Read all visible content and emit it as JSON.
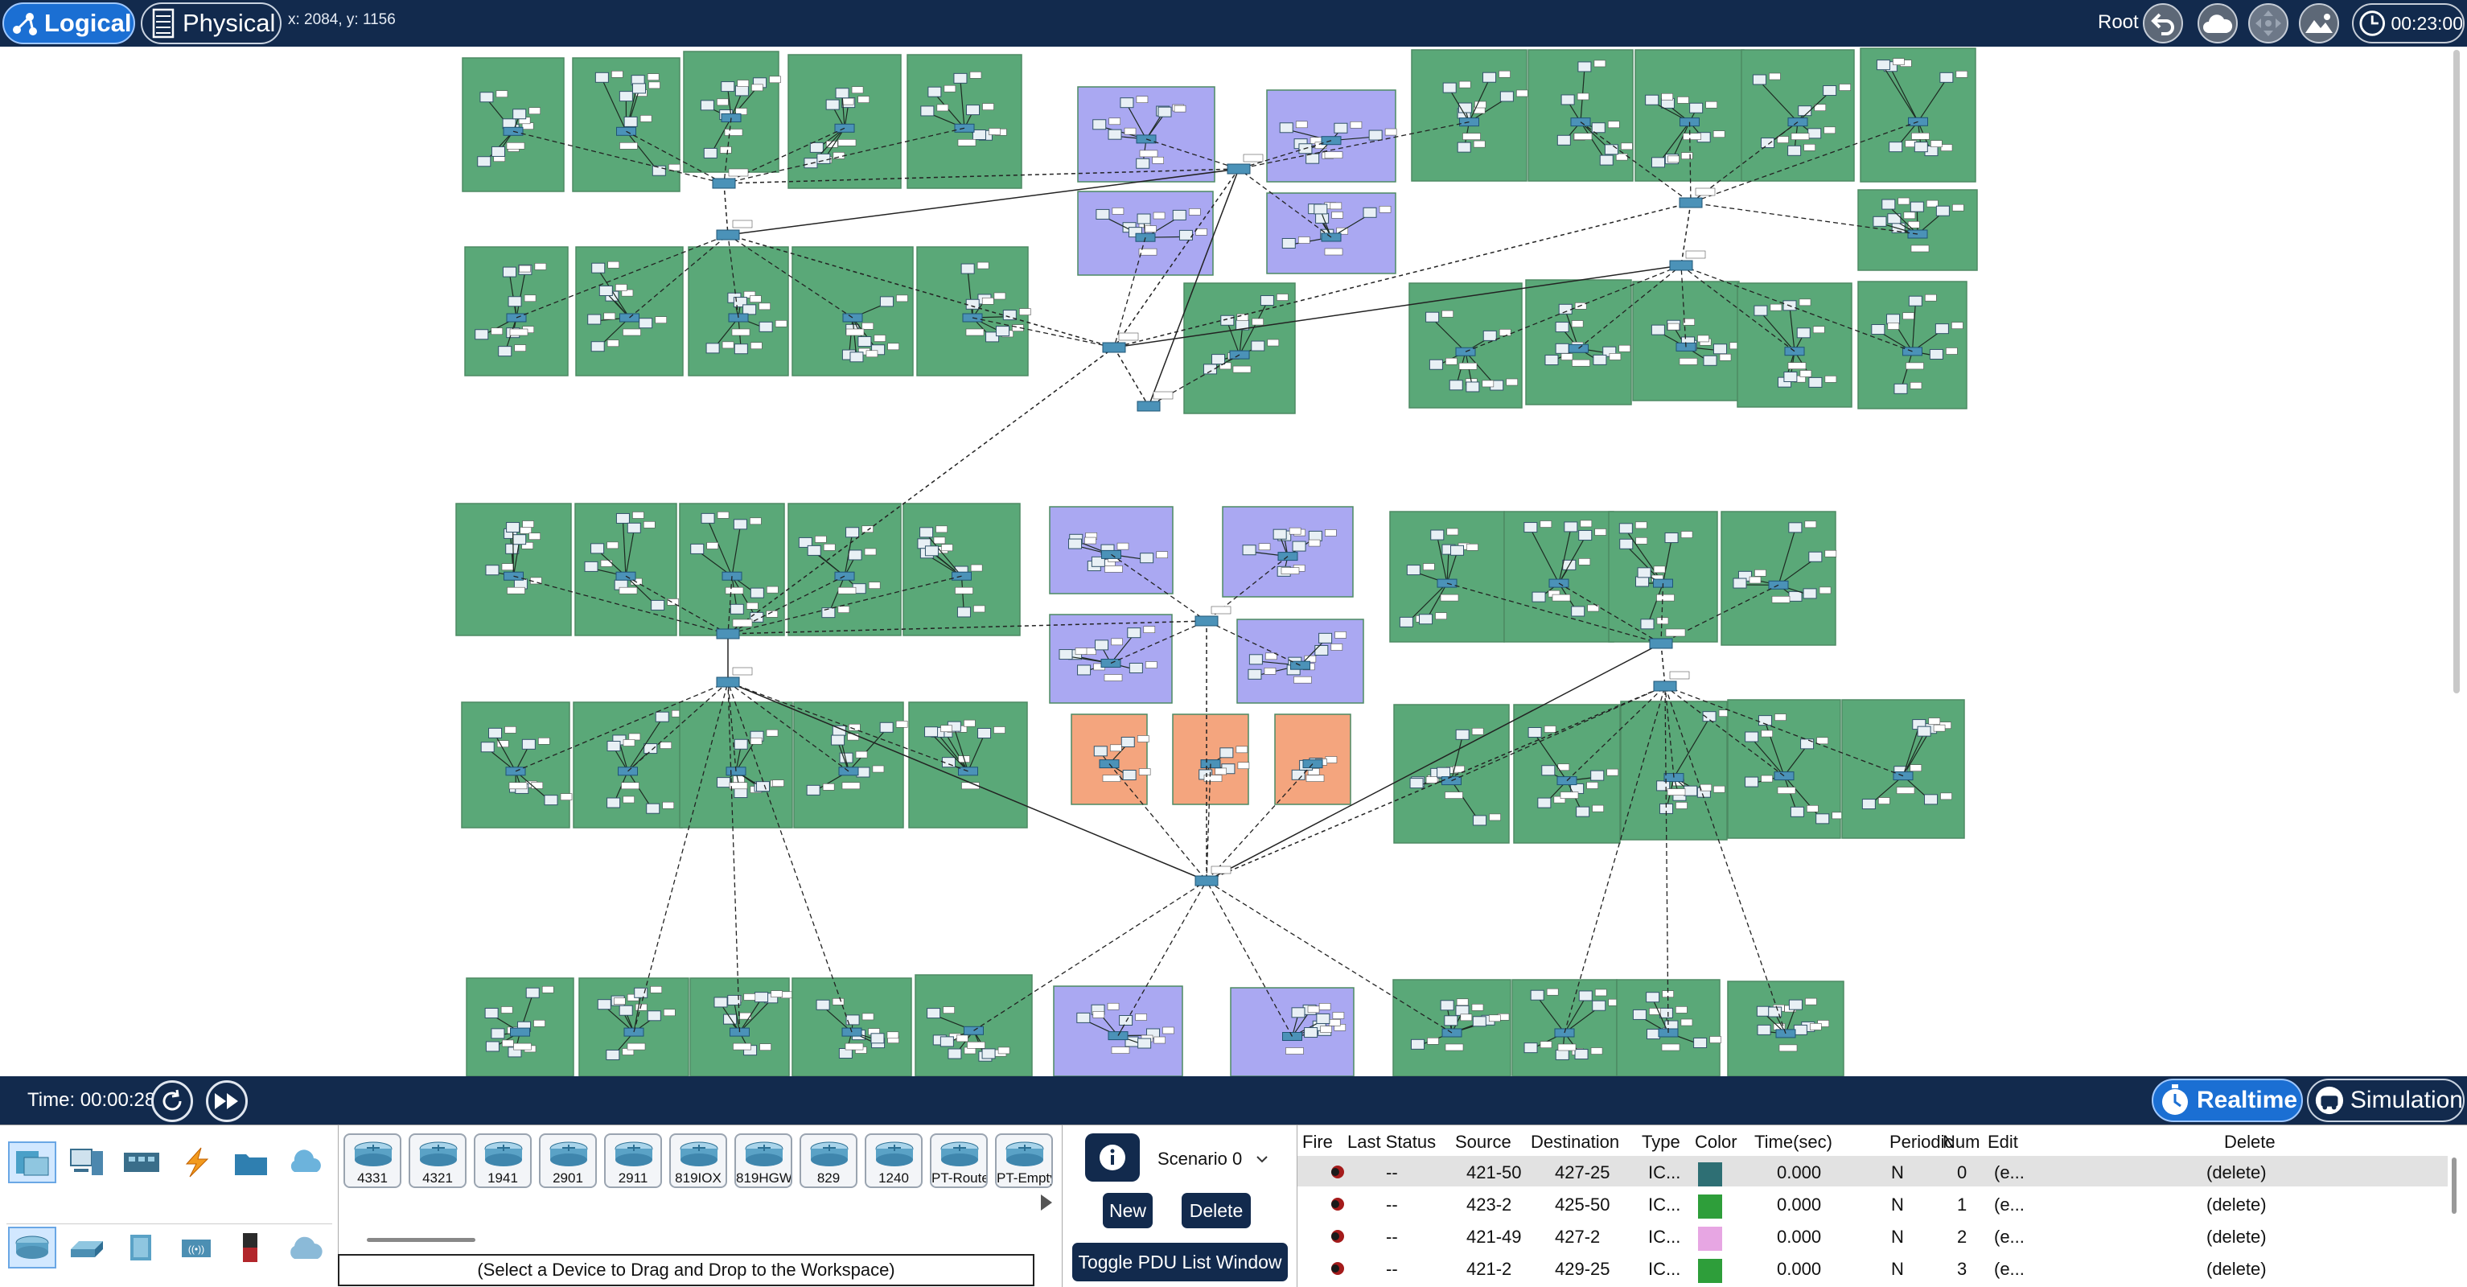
{
  "toolbar": {
    "logical_label": "Logical",
    "physical_label": "Physical",
    "coords": "x: 2084, y: 1156",
    "root_label": "Root",
    "clock": "00:23:00",
    "icons": [
      "back-arrow-icon",
      "cloud-icon",
      "move-icon",
      "image-icon",
      "clock-globe-icon"
    ]
  },
  "timebar": {
    "time": "Time: 00:00:28",
    "realtime_label": "Realtime",
    "simulation_label": "Simulation"
  },
  "devices": {
    "categories": [
      "network-devices-icon",
      "end-devices-icon",
      "components-icon",
      "connections-icon",
      "miscellaneous-icon",
      "multiuser-icon"
    ],
    "subcategories": [
      "routers-icon",
      "switches-icon",
      "hubs-icon",
      "wireless-icon",
      "security-icon",
      "wan-emulation-icon"
    ],
    "models": [
      "4331",
      "4321",
      "1941",
      "2901",
      "2911",
      "819IOX",
      "819HGW",
      "829",
      "1240",
      "PT-Router",
      "PT-Empty"
    ],
    "hint": "(Select a Device to Drag and Drop to the Workspace)"
  },
  "scenario": {
    "selected": "Scenario 0",
    "new_label": "New",
    "delete_label": "Delete",
    "toggle_label": "Toggle PDU List Window"
  },
  "pdu": {
    "headers": [
      "Fire",
      "Last Status",
      "Source",
      "Destination",
      "Type",
      "Color",
      "Time(sec)",
      "Periodic",
      "Num",
      "Edit",
      "Delete"
    ],
    "rows": [
      {
        "status": "--",
        "source": "421-50",
        "destination": "427-25",
        "type": "IC...",
        "color": "#2e6f74",
        "time": "0.000",
        "periodic": "N",
        "num": "0",
        "edit": "(e...",
        "delete": "(delete)"
      },
      {
        "status": "--",
        "source": "423-2",
        "destination": "425-50",
        "type": "IC...",
        "color": "#2e9e3a",
        "time": "0.000",
        "periodic": "N",
        "num": "1",
        "edit": "(e...",
        "delete": "(delete)"
      },
      {
        "status": "--",
        "source": "421-49",
        "destination": "427-2",
        "type": "IC...",
        "color": "#e7a6e3",
        "time": "0.000",
        "periodic": "N",
        "num": "2",
        "edit": "(e...",
        "delete": "(delete)"
      },
      {
        "status": "--",
        "source": "421-2",
        "destination": "429-25",
        "type": "IC...",
        "color": "#2e9e3a",
        "time": "0.000",
        "periodic": "N",
        "num": "3",
        "edit": "(e...",
        "delete": "(delete)"
      }
    ]
  },
  "colors": {
    "bar": "#122a4d",
    "accent": "#1b6fd3",
    "cluster_green": "#5aa878",
    "cluster_purple": "#aaa8f2",
    "cluster_orange": "#f4a57e"
  }
}
